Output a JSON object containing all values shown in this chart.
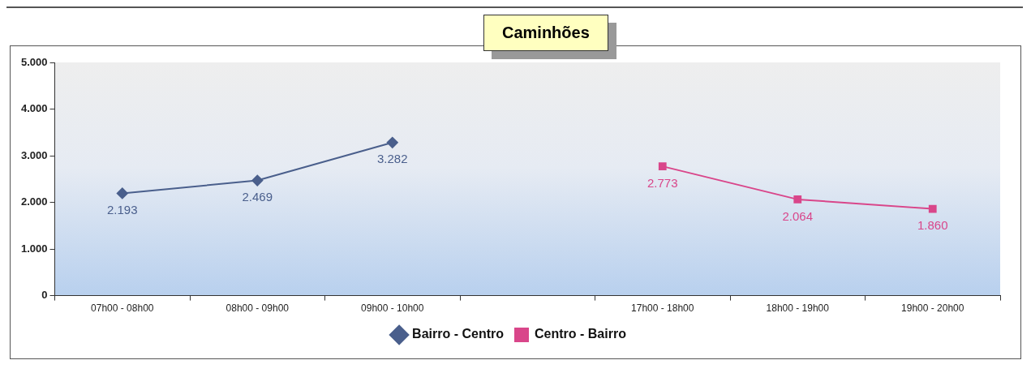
{
  "chart_data": {
    "type": "line",
    "title": "Caminhões",
    "categories": [
      "07h00 - 08h00",
      "08h00 - 09h00",
      "09h00 - 10h00",
      null,
      "17h00 - 18h00",
      "18h00 - 19h00",
      "19h00 - 20h00"
    ],
    "series": [
      {
        "name": "Bairro - Centro",
        "color": "#4a5f8c",
        "marker": "diamond",
        "values": [
          2193,
          2469,
          3282,
          null,
          null,
          null,
          null
        ],
        "value_labels": [
          "2.193",
          "2.469",
          "3.282",
          null,
          null,
          null,
          null
        ]
      },
      {
        "name": "Centro - Bairro",
        "color": "#d9468a",
        "marker": "square",
        "values": [
          null,
          null,
          null,
          null,
          2773,
          2064,
          1860
        ],
        "value_labels": [
          null,
          null,
          null,
          null,
          "2.773",
          "2.064",
          "1.860"
        ]
      }
    ],
    "ylim": [
      0,
      5000
    ],
    "yticks": [
      {
        "value": 0,
        "label": "0"
      },
      {
        "value": 1000,
        "label": "1.000"
      },
      {
        "value": 2000,
        "label": "2.000"
      },
      {
        "value": 3000,
        "label": "3.000"
      },
      {
        "value": 4000,
        "label": "4.000"
      },
      {
        "value": 5000,
        "label": "5.000"
      }
    ],
    "grid": false,
    "legend": "bottom",
    "line_style": "solid"
  }
}
